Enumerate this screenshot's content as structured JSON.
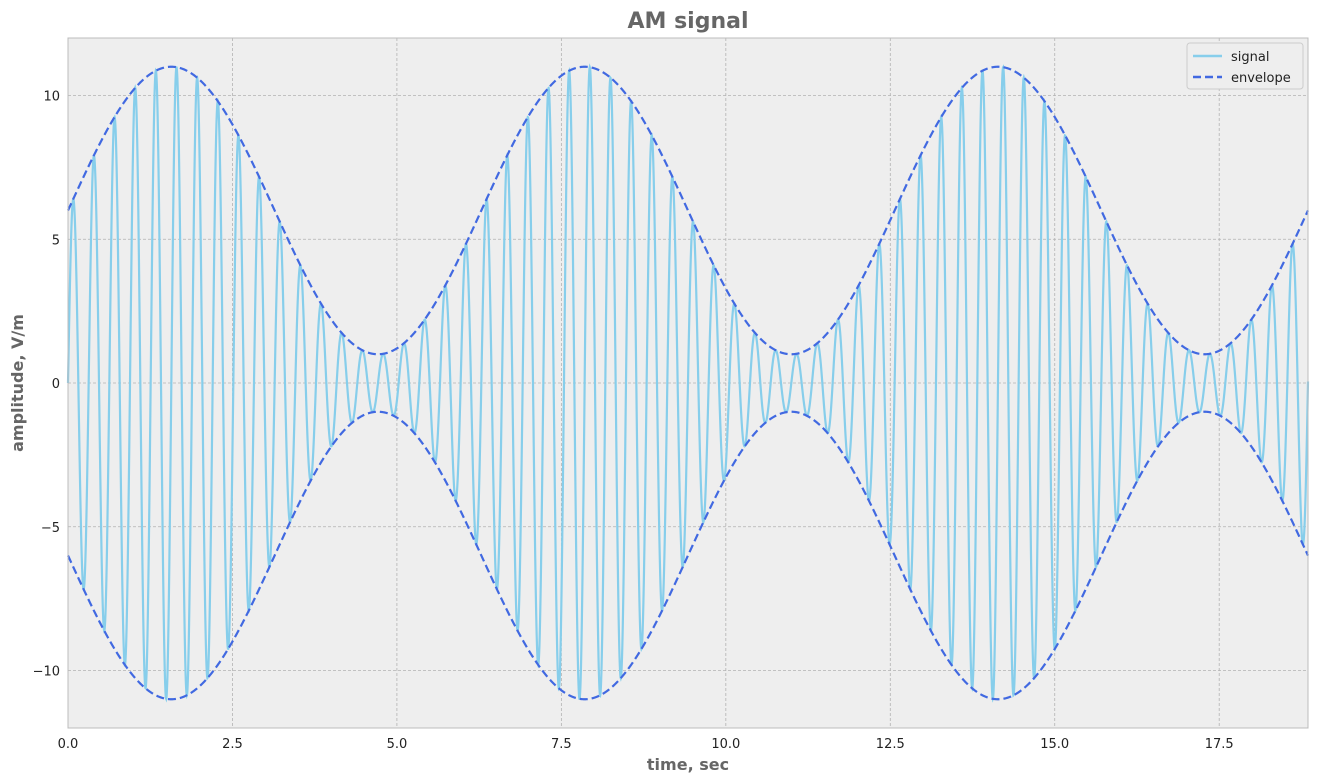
{
  "chart_data": {
    "type": "line",
    "title": "AM signal",
    "xlabel": "time, sec",
    "ylabel": "amplitude, V/m",
    "xlim": [
      0,
      18.85
    ],
    "ylim": [
      -12,
      12
    ],
    "x_ticks": [
      0,
      2.5,
      5,
      7.5,
      10,
      12.5,
      15,
      17.5
    ],
    "x_tick_labels": [
      "0.0",
      "2.5",
      "5.0",
      "7.5",
      "10.0",
      "12.5",
      "15.0",
      "17.5"
    ],
    "y_ticks": [
      -10,
      -5,
      0,
      5,
      10
    ],
    "y_tick_labels": [
      "−10",
      "−5",
      "0",
      "5",
      "10"
    ],
    "grid": true,
    "legend_position": "top-right",
    "background_color": "#eeeeee",
    "series": [
      {
        "name": "signal",
        "style": "solid",
        "color": "#87ceeb",
        "carrier_amplitude": 6,
        "modulation_amplitude": 5,
        "modulation_frequency_rad_per_sec": 1,
        "carrier_frequency_rad_per_sec": 20
      },
      {
        "name": "envelope",
        "style": "dashed",
        "color": "#4169e1",
        "upper_peak": 11,
        "upper_trough": 1,
        "lower_peak": -1,
        "lower_trough": -11
      }
    ]
  }
}
